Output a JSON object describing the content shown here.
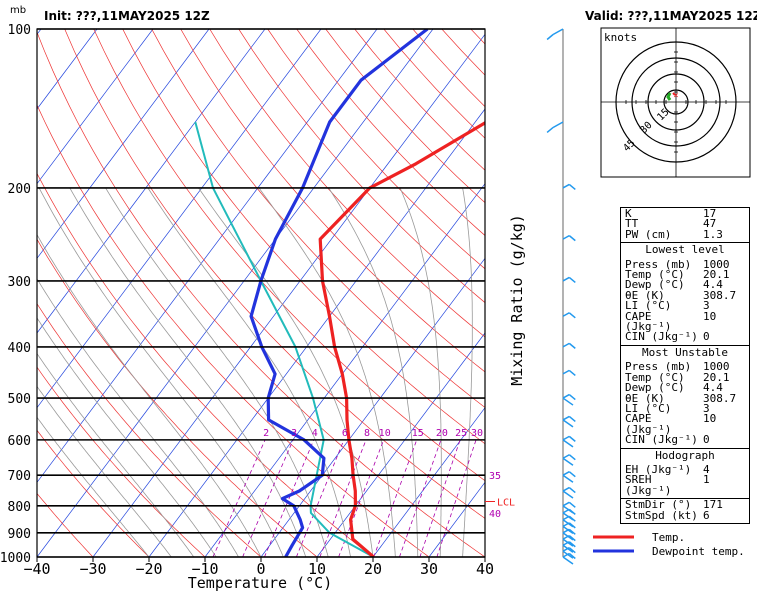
{
  "header": {
    "unit_label": "mb",
    "init": "Init: ???,11MAY2025  12Z",
    "valid": "Valid: ???,11MAY2025  12Z"
  },
  "chart_data": {
    "type": "line",
    "xlabel": "Temperature (°C)",
    "ylabel": "",
    "ylabel_right": "Mixing Ratio (g/kg)",
    "xlim": [
      -40,
      40
    ],
    "x_ticks": [
      "−40",
      "−30",
      "−20",
      "−10",
      "0",
      "10",
      "20",
      "30",
      "40"
    ],
    "pressure_levels": [
      1000,
      900,
      800,
      700,
      600,
      500,
      400,
      300,
      200,
      100
    ],
    "ylim": [
      1000,
      100
    ],
    "series": [
      {
        "name": "Temp.",
        "color": "#ee2222",
        "p": [
          1000,
          925,
          850,
          800,
          750,
          700,
          650,
          600,
          550,
          500,
          450,
          400,
          350,
          300,
          250,
          200,
          180,
          150,
          125,
          100
        ],
        "t": [
          20.1,
          14.0,
          11.0,
          10.0,
          8.0,
          5.5,
          3.0,
          0.0,
          -3.0,
          -6.0,
          -10.0,
          -15.0,
          -20.0,
          -26.0,
          -32.0,
          -30.0,
          -25.0,
          -18.0,
          -11.0,
          0.0
        ]
      },
      {
        "name": "Dewpoint temp.",
        "color": "#2233dd",
        "p": [
          1000,
          950,
          880,
          850,
          800,
          775,
          750,
          700,
          650,
          600,
          550,
          500,
          450,
          400,
          350,
          300,
          250,
          200,
          150,
          125,
          100
        ],
        "t": [
          4.4,
          4.0,
          3.5,
          2.0,
          -1.0,
          -4.0,
          -2.0,
          0.0,
          -2.0,
          -8.0,
          -17.0,
          -20.0,
          -22.0,
          -28.0,
          -34.0,
          -37.0,
          -40.0,
          -42.0,
          -46.0,
          -46.0,
          -41.0
        ]
      },
      {
        "name": "parcel",
        "color": "#22bbbb",
        "p": [
          1000,
          900,
          825,
          800,
          700,
          600,
          500,
          400,
          300,
          200,
          150
        ],
        "t": [
          20.1,
          9.0,
          3.0,
          2.0,
          -1.0,
          -4.5,
          -12.0,
          -22.0,
          -37.0,
          -58.0,
          -70.0
        ]
      }
    ],
    "mixing_ratio_labels": [
      "2",
      "3",
      "4",
      "6",
      "8",
      "10",
      "15",
      "20",
      "25",
      "30"
    ],
    "lcl_label": "LCL",
    "lcl_pressure": 785,
    "right_axis_labels": [
      {
        "text": "35",
        "p": 700
      },
      {
        "text": "40",
        "p": 825
      }
    ]
  },
  "hodograph": {
    "title": "knots",
    "ring_labels": [
      "15",
      "30",
      "45"
    ]
  },
  "indices": {
    "top": [
      {
        "label": "K",
        "value": "17"
      },
      {
        "label": "TT",
        "value": "47"
      },
      {
        "label": "PW (cm)",
        "value": "1.3"
      }
    ],
    "lowest_title": "Lowest level",
    "lowest": [
      {
        "label": "Press (mb)",
        "value": "1000"
      },
      {
        "label": "Temp (°C)",
        "value": "20.1"
      },
      {
        "label": "Dewp (°C)",
        "value": "4.4"
      },
      {
        "label": "θE (K)",
        "value": "308.7"
      },
      {
        "label": "LI (°C)",
        "value": "3"
      },
      {
        "label": "CAPE (Jkg⁻¹)",
        "value": "10"
      },
      {
        "label": "CIN (Jkg⁻¹)",
        "value": "0"
      }
    ],
    "unstable_title": "Most Unstable",
    "unstable": [
      {
        "label": "Press (mb)",
        "value": "1000"
      },
      {
        "label": "Temp (°C)",
        "value": "20.1"
      },
      {
        "label": "Dewp (°C)",
        "value": "4.4"
      },
      {
        "label": "θE (K)",
        "value": "308.7"
      },
      {
        "label": "LI (°C)",
        "value": "3"
      },
      {
        "label": "CAPE (Jkg⁻¹)",
        "value": "10"
      },
      {
        "label": "CIN (Jkg⁻¹)",
        "value": "0"
      }
    ],
    "hodo_title": "Hodograph",
    "hodo": [
      {
        "label": "EH (Jkg⁻¹)",
        "value": "4"
      },
      {
        "label": "SREH (Jkg⁻¹)",
        "value": "1"
      }
    ],
    "storm": [
      {
        "label": "StmDir (°)",
        "value": "171"
      },
      {
        "label": "StmSpd (kt)",
        "value": "6"
      }
    ]
  },
  "legend": {
    "temp": "Temp.",
    "dewp": "Dewpoint temp."
  },
  "colors": {
    "temp": "#ee2222",
    "dewp": "#2233dd",
    "parcel": "#22bbbb",
    "isotherm": "#2244dd",
    "dry_adiabat": "#ee3333",
    "moist_adiabat": "#999999",
    "mixing_ratio": "#aa00aa",
    "wind": "#2299ee"
  }
}
